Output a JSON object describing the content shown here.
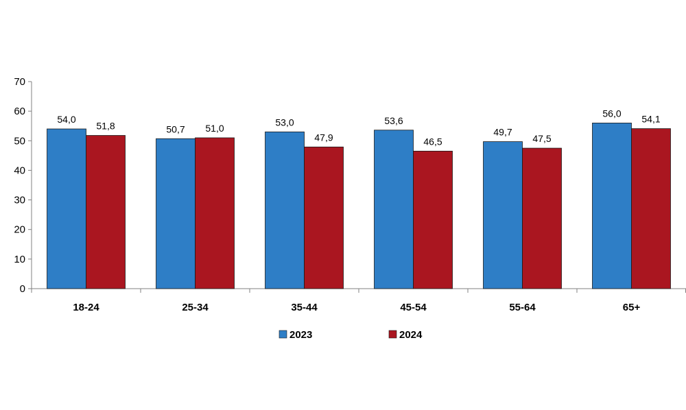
{
  "chart_data": {
    "type": "bar",
    "categories": [
      "18-24",
      "25-34",
      "35-44",
      "45-54",
      "55-64",
      "65+"
    ],
    "series": [
      {
        "name": "2023",
        "values": [
          54.0,
          50.7,
          53.0,
          53.6,
          49.7,
          56.0
        ],
        "labels": [
          "54,0",
          "50,7",
          "53,0",
          "53,6",
          "49,7",
          "56,0"
        ],
        "color": "#2E7EC6"
      },
      {
        "name": "2024",
        "values": [
          51.8,
          51.0,
          47.9,
          46.5,
          47.5,
          54.1
        ],
        "labels": [
          "51,8",
          "51,0",
          "47,9",
          "46,5",
          "47,5",
          "54,1"
        ],
        "color": "#AA1620"
      }
    ],
    "ylim": [
      0,
      70
    ],
    "yticks": [
      0,
      10,
      20,
      30,
      40,
      50,
      60,
      70
    ],
    "xlabel": "",
    "ylabel": "",
    "grid": false,
    "legend_position": "bottom-center"
  }
}
